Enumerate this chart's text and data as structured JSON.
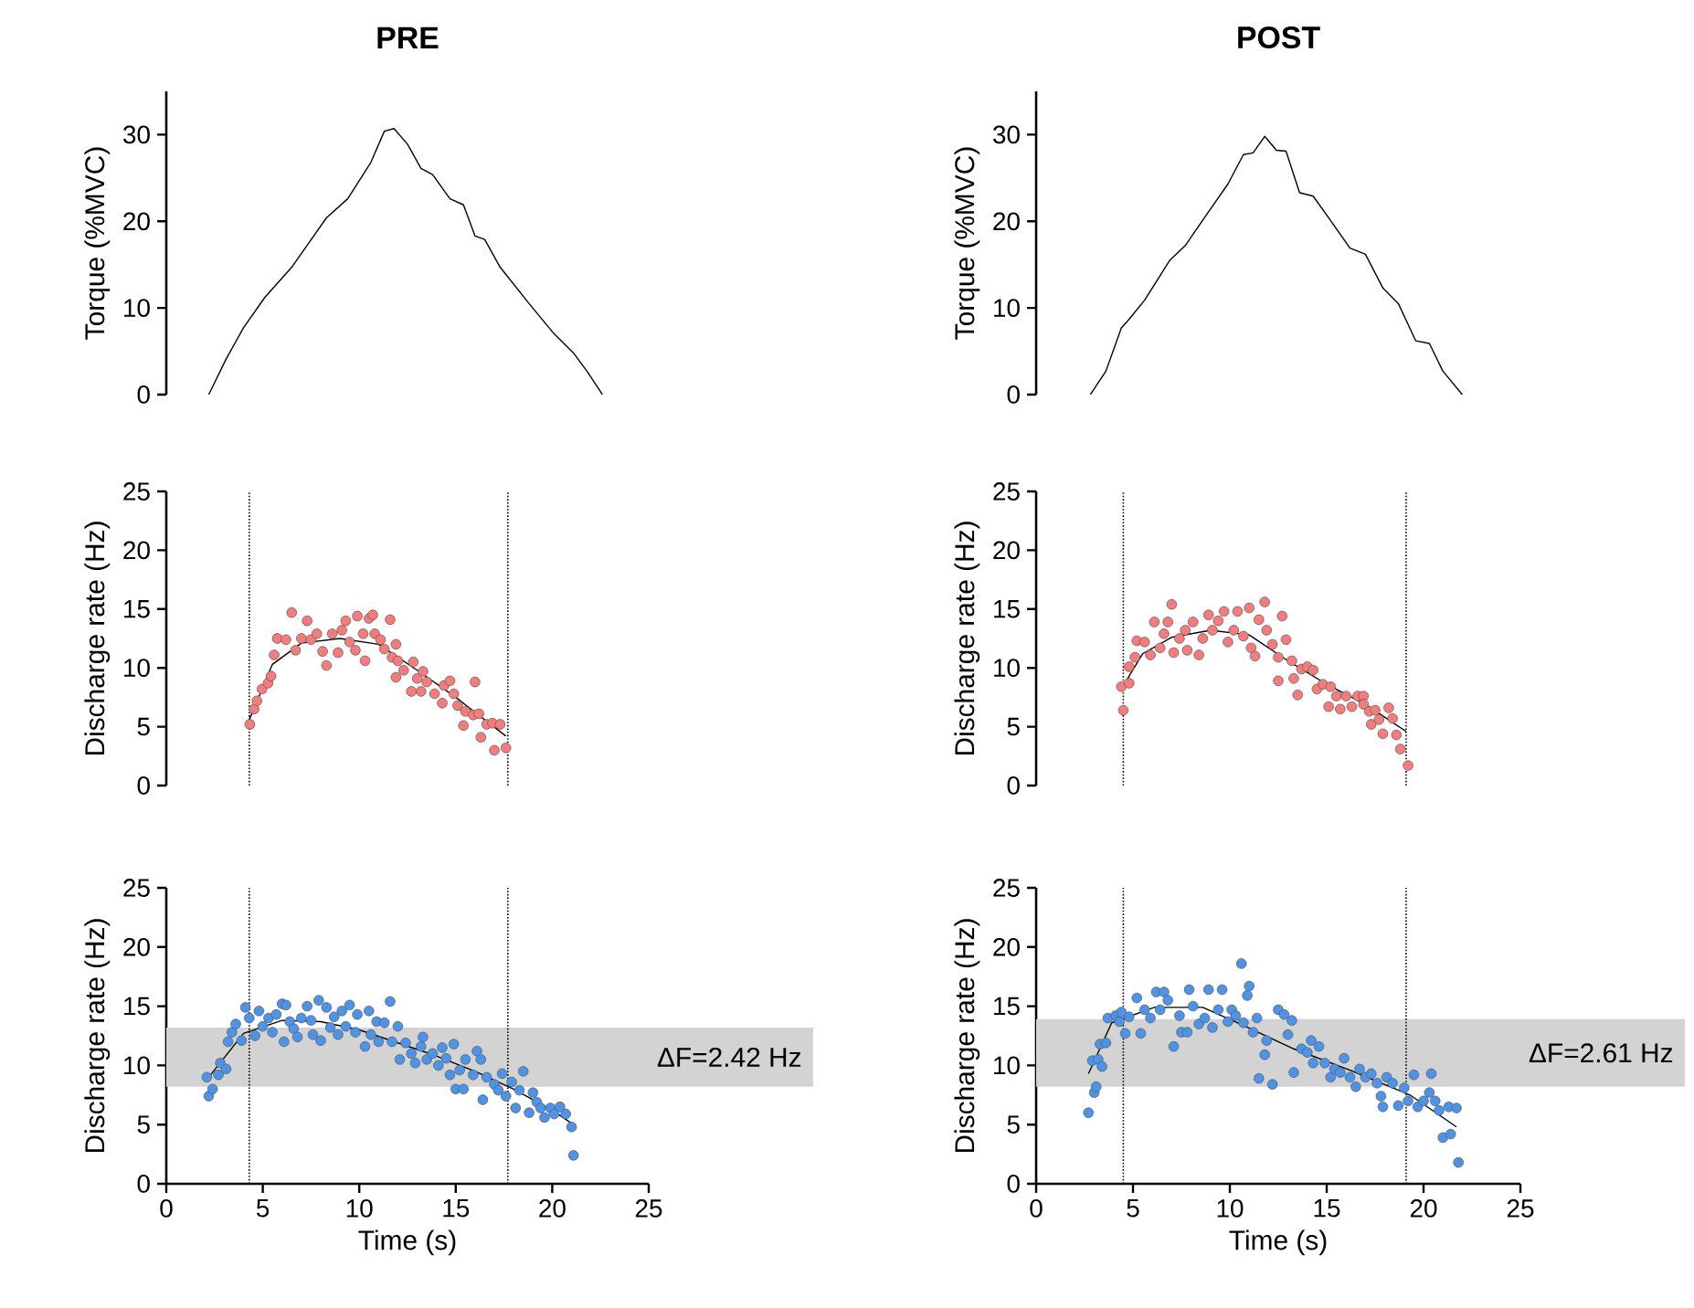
{
  "chart_data": [
    {
      "type": "line",
      "title": "PRE",
      "ylabel": "Torque (%MVC)",
      "color": "#000000",
      "xlim": [
        0,
        25
      ],
      "ylim": [
        0,
        35
      ],
      "yticks": [
        0,
        10,
        20,
        30
      ],
      "tick_labels": "y",
      "x": [
        2.2,
        3.1,
        4.0,
        5.1,
        6.5,
        8.3,
        9.4,
        10.6,
        11.3,
        11.8,
        12.5,
        13.2,
        13.8,
        14.7,
        15.4,
        16.0,
        16.5,
        17.3,
        18.8,
        20.1,
        21.1,
        21.8,
        22.6
      ],
      "values": [
        0,
        4.1,
        7.7,
        11.2,
        14.7,
        20.4,
        22.6,
        26.8,
        30.4,
        30.7,
        28.9,
        26.1,
        25.4,
        22.6,
        21.9,
        18.3,
        17.9,
        14.7,
        10.5,
        7.0,
        4.8,
        2.7,
        0
      ]
    },
    {
      "type": "line",
      "title": "POST",
      "ylabel": "Torque (%MVC)",
      "color": "#000000",
      "xlim": [
        0,
        25
      ],
      "ylim": [
        0,
        35
      ],
      "yticks": [
        0,
        10,
        20,
        30
      ],
      "tick_labels": "y",
      "x": [
        2.8,
        3.6,
        4.4,
        4.8,
        5.6,
        6.9,
        7.7,
        8.9,
        9.9,
        10.7,
        11.2,
        11.8,
        12.4,
        12.9,
        13.6,
        14.3,
        15.2,
        16.2,
        17.0,
        17.9,
        18.7,
        19.6,
        20.3,
        21.0,
        22.0
      ],
      "values": [
        0,
        2.7,
        7.7,
        8.7,
        10.9,
        15.5,
        17.2,
        21.1,
        24.3,
        27.7,
        27.9,
        29.8,
        28.2,
        28.1,
        23.3,
        22.9,
        20.1,
        16.9,
        16.2,
        12.3,
        10.5,
        6.2,
        5.9,
        2.7,
        0
      ]
    },
    {
      "type": "scatter",
      "ylabel": "Discharge rate (Hz)",
      "xlim": [
        0,
        25
      ],
      "ylim": [
        0,
        25
      ],
      "yticks": [
        0,
        5,
        10,
        15,
        20,
        25
      ],
      "tick_labels": "y",
      "ref_lines": [
        {
          "axis": "x",
          "value": 4.3,
          "line_style": "dotted"
        },
        {
          "axis": "x",
          "value": 17.7,
          "line_style": "dotted"
        }
      ],
      "series": [
        {
          "type": "scatter",
          "marker": "circle",
          "color": "#f47c7c",
          "x": [
            4.33,
            4.55,
            4.7,
            4.96,
            5.27,
            5.43,
            5.59,
            5.75,
            6.2,
            6.5,
            6.7,
            7.0,
            7.3,
            7.5,
            7.8,
            8.1,
            8.3,
            8.6,
            8.9,
            9.1,
            9.3,
            9.5,
            9.8,
            9.9,
            10.2,
            10.3,
            10.5,
            10.7,
            10.8,
            11.1,
            11.3,
            11.6,
            11.7,
            11.9,
            12.0,
            11.9,
            12.3,
            12.7,
            12.8,
            13.0,
            13.3,
            13.2,
            13.5,
            13.9,
            14.3,
            14.4,
            14.7,
            14.9,
            15.1,
            15.4,
            15.5,
            15.9,
            16.0,
            16.2,
            16.3,
            16.6,
            16.9,
            17.0,
            17.3,
            17.6
          ],
          "values": [
            5.2,
            6.5,
            7.2,
            8.2,
            8.7,
            9.3,
            11.1,
            12.5,
            12.4,
            14.7,
            11.5,
            12.5,
            14.0,
            12.4,
            12.9,
            11.4,
            10.2,
            12.9,
            11.3,
            13.2,
            14.0,
            12.2,
            11.5,
            14.4,
            12.9,
            10.6,
            14.2,
            14.5,
            12.9,
            12.4,
            11.6,
            14.1,
            10.9,
            12.0,
            10.6,
            9.2,
            9.8,
            8.0,
            10.5,
            9.1,
            9.7,
            8.0,
            8.8,
            7.8,
            7.0,
            8.5,
            8.9,
            7.8,
            6.8,
            5.1,
            6.3,
            6.0,
            8.8,
            6.1,
            4.1,
            5.2,
            5.3,
            3.0,
            5.2,
            3.2
          ]
        },
        {
          "type": "line",
          "color": "#000000",
          "x": [
            4.3,
            5.5,
            7.0,
            9.0,
            11.0,
            13.0,
            15.0,
            17.6
          ],
          "values": [
            5.6,
            10.3,
            12.1,
            12.5,
            12.0,
            9.8,
            7.5,
            4.2
          ]
        }
      ]
    },
    {
      "type": "scatter",
      "ylabel": "Discharge rate (Hz)",
      "xlim": [
        0,
        25
      ],
      "ylim": [
        0,
        25
      ],
      "yticks": [
        0,
        5,
        10,
        15,
        20,
        25
      ],
      "tick_labels": "y",
      "ref_lines": [
        {
          "axis": "x",
          "value": 4.5,
          "line_style": "dotted"
        },
        {
          "axis": "x",
          "value": 19.1,
          "line_style": "dotted"
        }
      ],
      "series": [
        {
          "type": "scatter",
          "marker": "circle",
          "color": "#f47c7c",
          "x": [
            4.5,
            4.4,
            4.8,
            4.8,
            5.1,
            5.2,
            5.6,
            5.9,
            6.1,
            6.4,
            6.6,
            6.8,
            7.0,
            7.1,
            7.4,
            7.7,
            7.8,
            8.1,
            8.4,
            8.6,
            8.9,
            9.1,
            9.4,
            9.7,
            9.9,
            10.2,
            10.4,
            10.7,
            11.0,
            11.1,
            11.3,
            11.5,
            11.8,
            11.9,
            12.2,
            12.5,
            12.5,
            12.7,
            12.9,
            13.2,
            13.3,
            13.7,
            13.5,
            14.0,
            14.3,
            14.5,
            14.8,
            15.2,
            15.1,
            15.5,
            15.7,
            16.0,
            16.3,
            16.6,
            16.9,
            16.9,
            17.2,
            17.3,
            17.5,
            17.7,
            17.9,
            18.2,
            18.4,
            18.6,
            18.8,
            19.2
          ],
          "values": [
            6.4,
            8.4,
            8.7,
            10.1,
            10.9,
            12.3,
            12.2,
            11.1,
            13.9,
            11.7,
            12.9,
            13.9,
            15.4,
            11.3,
            12.5,
            13.2,
            11.5,
            13.9,
            11.1,
            12.5,
            14.5,
            13.2,
            14.0,
            14.8,
            12.2,
            13.2,
            14.8,
            12.7,
            15.1,
            11.7,
            11.0,
            14.1,
            15.6,
            13.2,
            12.0,
            8.9,
            10.9,
            14.4,
            12.4,
            10.6,
            9.1,
            9.9,
            7.7,
            10.1,
            9.8,
            8.2,
            8.6,
            8.4,
            6.7,
            7.6,
            6.5,
            7.6,
            6.7,
            7.6,
            7.6,
            6.9,
            6.3,
            5.2,
            6.4,
            5.6,
            4.4,
            6.6,
            5.7,
            4.3,
            3.1,
            1.7
          ]
        },
        {
          "type": "line",
          "color": "#000000",
          "x": [
            4.5,
            5.5,
            7.0,
            9.0,
            11.0,
            13.0,
            15.0,
            17.0,
            19.1
          ],
          "values": [
            8.5,
            11.2,
            12.6,
            13.2,
            12.8,
            10.6,
            8.6,
            6.9,
            4.6
          ]
        }
      ]
    },
    {
      "type": "scatter",
      "ylabel": "Discharge rate (Hz)",
      "xlabel": "Time (s)",
      "xlim": [
        0,
        25
      ],
      "ylim": [
        0,
        25
      ],
      "xticks": [
        0,
        5,
        10,
        15,
        20,
        25
      ],
      "yticks": [
        0,
        5,
        10,
        15,
        20,
        25
      ],
      "ref_lines": [
        {
          "axis": "x",
          "value": 4.3,
          "line_style": "dotted"
        },
        {
          "axis": "x",
          "value": 17.7,
          "line_style": "dotted"
        }
      ],
      "bands": [
        {
          "axis": "y",
          "from": 8.2,
          "to": 13.2,
          "label": "ΔF=2.42 Hz",
          "color": "#d3d3d3"
        }
      ],
      "series": [
        {
          "type": "scatter",
          "marker": "circle",
          "color": "#4d94e8",
          "x": [
            2.2,
            2.1,
            2.4,
            2.7,
            2.8,
            3.1,
            3.2,
            3.4,
            3.6,
            3.9,
            4.1,
            4.3,
            4.6,
            4.8,
            5.0,
            5.3,
            5.5,
            5.7,
            6.0,
            6.1,
            6.2,
            6.4,
            6.6,
            6.8,
            7.0,
            7.3,
            7.5,
            7.6,
            7.9,
            8.0,
            8.3,
            8.5,
            8.7,
            8.9,
            9.1,
            9.3,
            9.5,
            9.8,
            9.9,
            10.3,
            10.5,
            10.6,
            10.9,
            11.0,
            11.3,
            11.6,
            11.7,
            12.0,
            12.1,
            12.4,
            12.7,
            12.9,
            13.2,
            13.3,
            13.5,
            13.8,
            14.1,
            14.3,
            14.5,
            14.7,
            14.9,
            15.0,
            15.2,
            15.4,
            15.5,
            15.9,
            16.1,
            16.3,
            16.4,
            16.6,
            17.0,
            17.2,
            17.4,
            17.6,
            17.9,
            18.1,
            18.3,
            18.5,
            18.8,
            19.0,
            19.2,
            19.4,
            19.6,
            19.9,
            20.1,
            20.4,
            20.7,
            21.0,
            21.1
          ],
          "values": [
            7.4,
            9.0,
            8.0,
            9.2,
            10.2,
            9.7,
            12.0,
            12.8,
            13.5,
            12.1,
            14.9,
            14.0,
            12.5,
            14.6,
            13.3,
            14.0,
            12.8,
            14.3,
            15.2,
            12.0,
            15.1,
            13.7,
            13.1,
            12.4,
            14.0,
            15.0,
            13.8,
            12.6,
            15.5,
            12.1,
            14.9,
            13.2,
            14.1,
            12.6,
            14.6,
            13.3,
            15.1,
            12.8,
            14.3,
            11.6,
            14.6,
            12.6,
            13.7,
            12.0,
            13.6,
            15.4,
            12.0,
            13.3,
            10.5,
            11.9,
            11.0,
            10.2,
            11.6,
            12.4,
            10.5,
            11.0,
            10.0,
            11.5,
            10.6,
            9.2,
            11.8,
            8.0,
            9.6,
            8.0,
            10.5,
            9.2,
            11.2,
            10.5,
            7.1,
            9.0,
            8.4,
            7.9,
            9.3,
            7.4,
            8.6,
            6.4,
            7.9,
            9.5,
            6.0,
            7.7,
            6.9,
            6.4,
            5.6,
            6.4,
            5.9,
            6.5,
            5.9,
            4.8,
            2.4
          ]
        },
        {
          "type": "line",
          "color": "#000000",
          "x": [
            2.2,
            4.0,
            6.0,
            8.0,
            10.0,
            12.0,
            14.0,
            16.0,
            18.0,
            20.0,
            21.1
          ],
          "values": [
            9.0,
            12.7,
            13.8,
            13.7,
            13.0,
            11.9,
            10.8,
            9.5,
            8.0,
            6.2,
            5.0
          ]
        }
      ]
    },
    {
      "type": "scatter",
      "ylabel": "Discharge rate (Hz)",
      "xlabel": "Time (s)",
      "xlim": [
        0,
        25
      ],
      "ylim": [
        0,
        25
      ],
      "xticks": [
        0,
        5,
        10,
        15,
        20,
        25
      ],
      "yticks": [
        0,
        5,
        10,
        15,
        20,
        25
      ],
      "ref_lines": [
        {
          "axis": "x",
          "value": 4.5,
          "line_style": "dotted"
        },
        {
          "axis": "x",
          "value": 19.1,
          "line_style": "dotted"
        }
      ],
      "bands": [
        {
          "axis": "y",
          "from": 8.2,
          "to": 13.9,
          "label": "ΔF=2.61 Hz",
          "color": "#d3d3d3"
        }
      ],
      "series": [
        {
          "type": "scatter",
          "marker": "circle",
          "color": "#4d94e8",
          "x": [
            2.7,
            3.0,
            3.1,
            2.9,
            3.2,
            3.4,
            3.3,
            3.6,
            3.7,
            4.1,
            4.3,
            4.4,
            4.6,
            4.8,
            5.2,
            5.4,
            5.6,
            5.9,
            6.2,
            6.4,
            6.6,
            6.8,
            7.1,
            7.4,
            7.5,
            7.8,
            7.9,
            8.1,
            8.4,
            8.7,
            8.9,
            9.1,
            9.4,
            9.6,
            9.9,
            10.1,
            10.3,
            10.6,
            10.7,
            10.9,
            11.0,
            11.2,
            11.4,
            11.5,
            11.8,
            11.9,
            12.2,
            12.5,
            12.8,
            13.0,
            13.2,
            13.3,
            13.7,
            14.0,
            14.2,
            14.3,
            14.6,
            14.9,
            15.2,
            15.4,
            15.7,
            15.9,
            16.2,
            16.5,
            16.7,
            17.0,
            17.3,
            17.6,
            17.8,
            17.9,
            18.1,
            18.4,
            18.7,
            19.0,
            19.2,
            19.5,
            19.7,
            20.0,
            20.3,
            20.4,
            20.6,
            20.8,
            21.0,
            21.4,
            21.3,
            21.7,
            21.8
          ],
          "values": [
            6.0,
            7.7,
            8.2,
            10.4,
            10.5,
            9.9,
            11.8,
            11.9,
            14.0,
            14.2,
            13.7,
            14.5,
            12.7,
            14.1,
            15.7,
            12.7,
            14.7,
            14.0,
            16.2,
            14.7,
            16.2,
            15.5,
            11.6,
            14.2,
            12.8,
            12.8,
            16.4,
            15.0,
            13.5,
            14.0,
            16.4,
            13.2,
            14.7,
            16.4,
            13.7,
            14.7,
            14.2,
            18.6,
            13.6,
            15.9,
            16.7,
            12.8,
            14.0,
            8.9,
            10.9,
            12.1,
            8.4,
            14.7,
            14.3,
            12.6,
            13.8,
            9.4,
            11.4,
            11.1,
            12.1,
            10.2,
            11.6,
            10.2,
            9.0,
            9.7,
            9.4,
            10.6,
            9.0,
            8.2,
            9.7,
            9.0,
            9.3,
            8.5,
            7.4,
            6.5,
            9.0,
            8.5,
            6.6,
            8.1,
            7.0,
            9.2,
            6.5,
            7.0,
            7.7,
            9.3,
            7.0,
            6.2,
            3.9,
            4.2,
            6.5,
            6.4,
            1.8
          ]
        },
        {
          "type": "line",
          "color": "#000000",
          "x": [
            2.7,
            3.9,
            6.1,
            8.6,
            10.8,
            13.3,
            16.2,
            19.3,
            21.7
          ],
          "values": [
            9.3,
            13.6,
            14.9,
            14.9,
            13.3,
            11.4,
            9.6,
            7.5,
            4.8
          ]
        }
      ]
    }
  ]
}
